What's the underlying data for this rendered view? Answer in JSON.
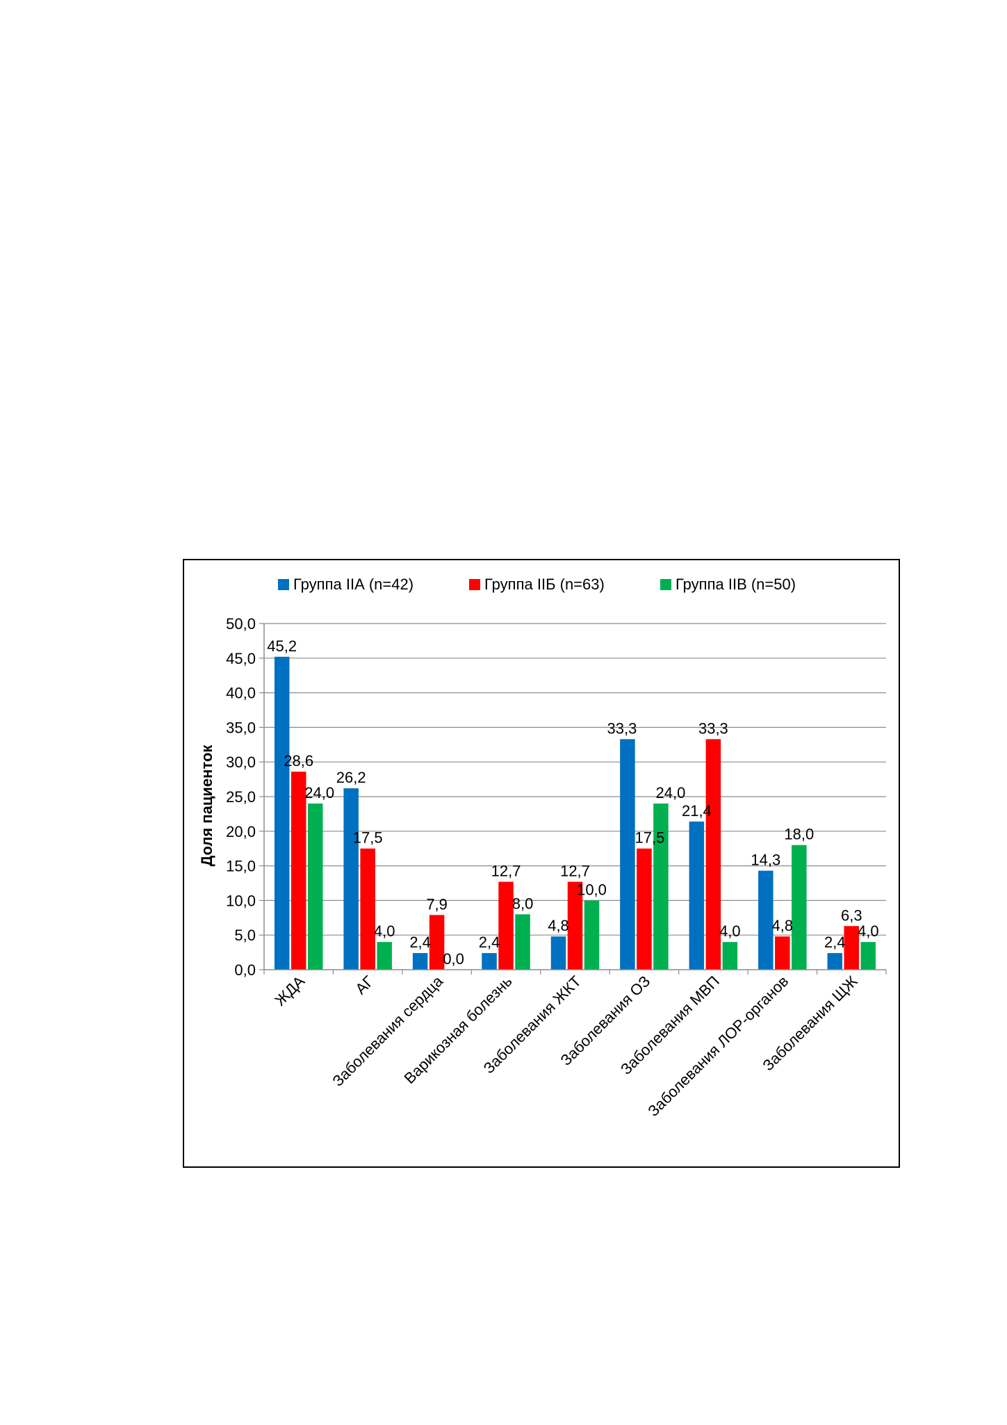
{
  "chart_data": {
    "type": "bar",
    "title": "",
    "xlabel": "",
    "ylabel": "Доля пациенток",
    "ylim": [
      0,
      50
    ],
    "ytick_step": 5,
    "ytick_labels": [
      "0,0",
      "5,0",
      "10,0",
      "15,0",
      "20,0",
      "25,0",
      "30,0",
      "35,0",
      "40,0",
      "45,0",
      "50,0"
    ],
    "grid": true,
    "legend_position": "top",
    "categories": [
      "ЖДА",
      "АГ",
      "Заболевания сердца",
      "Варикозная болезнь",
      "Заболевания ЖКТ",
      "Заболевания ОЗ",
      "Заболевания МВП",
      "Заболевания ЛОР-органов",
      "Заболевания ЩЖ"
    ],
    "series": [
      {
        "name": "Группа IIА (n=42)",
        "color": "#0070C0",
        "values": [
          45.2,
          26.2,
          2.4,
          2.4,
          4.8,
          33.3,
          21.4,
          14.3,
          2.4
        ],
        "labels": [
          "45,2",
          "26,2",
          "2,4",
          "2,4",
          "4,8",
          "33,3",
          "21,4",
          "14,3",
          "2,4"
        ]
      },
      {
        "name": "Группа IIБ (n=63)",
        "color": "#FF0000",
        "values": [
          28.6,
          17.5,
          7.9,
          12.7,
          12.7,
          17.5,
          33.3,
          4.8,
          6.3
        ],
        "labels": [
          "28,6",
          "17,5",
          "7,9",
          "12,7",
          "12,7",
          "17,5",
          "33,3",
          "4,8",
          "6,3"
        ]
      },
      {
        "name": "Группа IIВ (n=50)",
        "color": "#00B050",
        "values": [
          24.0,
          4.0,
          0.0,
          8.0,
          10.0,
          24.0,
          4.0,
          18.0,
          4.0
        ],
        "labels": [
          "24,0",
          "4,0",
          "0,0",
          "8,0",
          "10,0",
          "24,0",
          "4,0",
          "18,0",
          "4,0"
        ]
      }
    ]
  }
}
